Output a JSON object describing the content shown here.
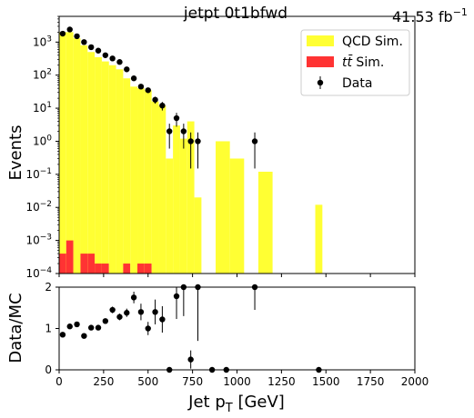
{
  "chart_data": [
    {
      "type": "histogram",
      "title": "jetpt  0t1bfwd",
      "lumi_label": "41.53 fb",
      "lumi_exponent": "−1",
      "ylabel": "Events",
      "xlabel": "",
      "yscale": "log",
      "xlim": [
        0,
        2000
      ],
      "ylim": [
        0.0001,
        6000
      ],
      "y_ticks": [
        {
          "v": 0.0001,
          "b": "10",
          "e": "−4"
        },
        {
          "v": 0.001,
          "b": "10",
          "e": "−3"
        },
        {
          "v": 0.01,
          "b": "10",
          "e": "−2"
        },
        {
          "v": 0.1,
          "b": "10",
          "e": "−1"
        },
        {
          "v": 1,
          "b": "10",
          "e": "0"
        },
        {
          "v": 10,
          "b": "10",
          "e": "1"
        },
        {
          "v": 100,
          "b": "10",
          "e": "2"
        },
        {
          "v": 1000,
          "b": "10",
          "e": "3"
        }
      ],
      "legend": {
        "position": "top-right",
        "qcd": "QCD Sim.",
        "tt_main": "tt̄",
        "tt_rest": " Sim.",
        "data": "Data"
      },
      "colors": {
        "qcd": "#ffff33",
        "tt": "#ff3333",
        "data": "#000000"
      },
      "bin_edges": [
        0,
        40,
        80,
        120,
        160,
        200,
        240,
        280,
        320,
        360,
        400,
        440,
        480,
        520,
        560,
        600,
        640,
        680,
        720,
        760,
        800,
        880,
        960,
        1040,
        1120,
        1200,
        1280,
        1360,
        1440,
        1480,
        2000
      ],
      "series": [
        {
          "name": "QCD Sim.",
          "values": [
            2000,
            2000,
            1300,
            800,
            500,
            350,
            260,
            200,
            150,
            80,
            45,
            40,
            35,
            16,
            12,
            0.3,
            3,
            1.2,
            4,
            0.02,
            0,
            1,
            0.3,
            0,
            0.12,
            0,
            0,
            0,
            0.012,
            0
          ]
        },
        {
          "name": "tt̄ Sim.",
          "values": [
            0.0004,
            0.001,
            0,
            0.0004,
            0.0004,
            0.0002,
            0.0002,
            0,
            0,
            0.0002,
            0,
            0.0002,
            0.0002,
            0,
            0,
            0,
            0,
            0,
            0,
            0,
            0,
            0,
            0,
            0,
            0,
            0,
            0,
            0,
            0,
            0
          ]
        }
      ],
      "data_points": {
        "name": "Data",
        "x": [
          20,
          60,
          100,
          140,
          180,
          220,
          260,
          300,
          340,
          380,
          420,
          460,
          500,
          540,
          580,
          620,
          660,
          700,
          740,
          780,
          1100
        ],
        "y": [
          1800,
          2400,
          1500,
          1000,
          700,
          550,
          400,
          320,
          250,
          150,
          80,
          45,
          35,
          18,
          12,
          2,
          5,
          2,
          1,
          1,
          1
        ],
        "yerr_rel": [
          0.02,
          0.02,
          0.03,
          0.03,
          0.04,
          0.04,
          0.05,
          0.06,
          0.06,
          0.08,
          0.11,
          0.15,
          0.17,
          0.24,
          0.29,
          0.7,
          0.45,
          0.7,
          0.85,
          0.85,
          0.85
        ]
      }
    },
    {
      "type": "ratio",
      "ylabel": "Data/MC",
      "xlabel": "Jet p",
      "xlabel_sub": "T",
      "xlabel_unit": " [GeV]",
      "xlim": [
        0,
        2000
      ],
      "ylim": [
        0,
        2
      ],
      "x_ticks": [
        0,
        250,
        500,
        750,
        1000,
        1250,
        1500,
        1750,
        2000
      ],
      "y_ticks": [
        0,
        1,
        2
      ],
      "points": {
        "x": [
          20,
          60,
          100,
          140,
          180,
          220,
          260,
          300,
          340,
          380,
          420,
          460,
          500,
          540,
          580,
          620,
          660,
          700,
          740,
          780,
          860,
          940,
          1100,
          1460
        ],
        "y": [
          0.85,
          1.05,
          1.1,
          0.82,
          1.02,
          1.02,
          1.18,
          1.45,
          1.28,
          1.38,
          1.75,
          1.4,
          1.0,
          1.4,
          1.22,
          0.0,
          1.78,
          2.0,
          0.25,
          2.0,
          0.0,
          0.0,
          2.0,
          0.0
        ],
        "yerr": [
          0.03,
          0.03,
          0.04,
          0.04,
          0.05,
          0.05,
          0.06,
          0.08,
          0.08,
          0.1,
          0.14,
          0.2,
          0.16,
          0.3,
          0.32,
          0,
          0.55,
          0.7,
          0.22,
          1.3,
          0,
          0,
          0.55,
          0
        ]
      }
    }
  ]
}
